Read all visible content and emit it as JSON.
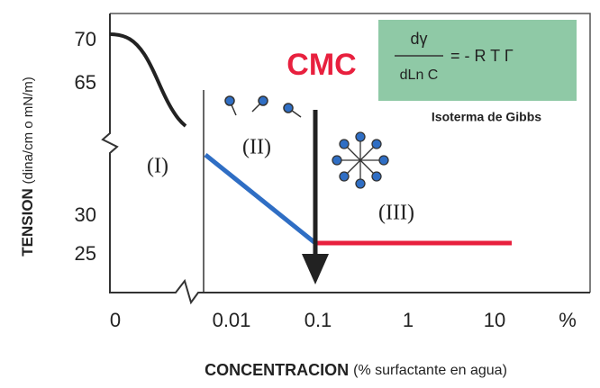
{
  "y_axis": {
    "title_bold": "TENSION",
    "title_rest": "(dina/cm o mN/m)",
    "ticks": [
      "70",
      "65",
      "30",
      "25"
    ]
  },
  "x_axis": {
    "title_bold": "CONCENTRACION",
    "title_rest": "(% surfactante en agua)",
    "ticks": [
      "0",
      "0.01",
      "0.1",
      "1",
      "10",
      "%"
    ]
  },
  "regions": [
    "(I)",
    "(II)",
    "(III)"
  ],
  "cmc": "CMC",
  "formula": {
    "numerator": "dγ",
    "denominator": "dLn C",
    "rhs": "= - R T Γ"
  },
  "caption": "Isoterma de Gibbs"
}
